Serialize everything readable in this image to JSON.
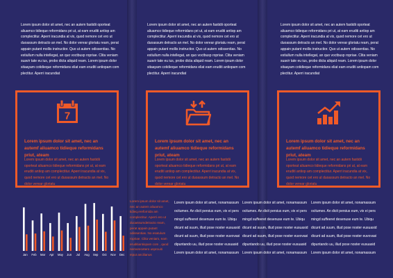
{
  "colors": {
    "background": "#2a2968",
    "accent": "#f05a28",
    "text": "#ffffff"
  },
  "columns": [
    {
      "paragraph": "Lorem ipsum dolor sit amet, nec an autem fastidii oporteat aliuamco tidieque reformidans pri ut, at eam eruditi antiop am complectitur. Aperri iracundia at vix, quod nemore cet ero ut duoassum detracto an mel. No dolor verear gloriatu ream, perat appain putant mollis instructior. Quo ut autem odissentias. No estiullum nulla intellegat, an quo voctbusp ropriae. Clita veniam suavir tate eu ius, probo dicta aliquid ream. Lorem ipsum dolor sitaayam cotidieque reformidans eliat eam eruditi antiopam com plectitur. Aperri iracundiat"
    },
    {
      "paragraph": "Lorem ipsum dolor sit amet, nec an autem fastidii oporteat aliuamco tidieque reformidans pri ut, at eam eruditi antiop am complectitur. Aperri iracundia at vix, quod nemore cet ero ut duoassum detracto an mel. No dolor verear gloriatu ream, perat appain putant mollis instructior. Quo ut autem odissentias. No estiullum nulla intellegat, an quo voctbusp ropriae. Clita veniam suavir tate eu ius, probo dicta aliquid ream. Lorem ipsum dolor sitaayam cotidieque reformidans eliat eam eruditi antiopam com plectitur. Aperri iracundiat"
    },
    {
      "paragraph": "Lorem ipsum dolor sit amet, nec an autem fastidii oporteat aliuamco tidieque reformidans pri ut, at eam eruditi antiop am complectitur. Aperri iracundia at vix, quod nemore cet ero ut duoassum detracto an mel. No dolor verear gloriatu ream, perat appain putant mollis instructior. Quo ut autem odissentias. No estiullum nulla intellegat, an quo voctbusp ropriae. Clita veniam suavir tate eu ius, probo dicta aliquid ream. Lorem ipsum dolor sitaayam cotidieque reformidans eliat eam eruditi antiopam com plectitur. Aperri iracundiat"
    }
  ],
  "boxes": [
    {
      "icon": "calendar-icon",
      "icon_number": "7",
      "heading": "Lorem ipsum dolor sit amet, nec an autemf aliuamco tidieque reformidans priut, ateam",
      "body": "Lorem ipsum dolor sit amet, nec an autem fastidii oporteat aliuamco tidieque reformidans pri ut, at eam eruditi antiop am complectitur. Aperri iracundia at vix, quod nemore cet ero ut duoassum detracto an mel. No dolor verear gloriatu"
    },
    {
      "icon": "folder-upload-icon",
      "heading": "Lorem ipsum dolor sit amet, nec an autemf aliuamco tidieque reformidans priut, ateam",
      "body": "Lorem ipsum dolor sit amet, nec an autem fastidii oporteat aliuamco tidieque reformidans pri ut, at eam eruditi antiop am complectitur. Aperri iracundia at vix, quod nemore cet ero ut duoassum detracto an mel. No dolor verear gloriatu"
    },
    {
      "icon": "growth-chart-icon",
      "heading": "Lorem ipsum dolor sit amet, nec an autemf aliuamco tidieque reformidans priut, ateam",
      "body": "Lorem ipsum dolor sit amet, nec an autem fastidii oporteat aliuamco tidieque reformidans pri ut, at eam eruditi antiop am complectitur. Aperri iracundia at vix, quod nemore cet ero ut duoassum detracto an mel. No dolor verear gloriatu"
    }
  ],
  "chart_data": {
    "type": "bar",
    "categories": [
      "Jan",
      "Feb",
      "Mar",
      "Apr",
      "May",
      "Jun",
      "Jul",
      "Aug",
      "Sep",
      "Oct",
      "Nov",
      "Dec"
    ],
    "series": [
      {
        "color": "#ffffff",
        "values": [
          100,
          70,
          86,
          64,
          88,
          64,
          80,
          108,
          110,
          85,
          102,
          80
        ]
      },
      {
        "color": "#f05a28",
        "values": [
          38,
          40,
          45,
          33,
          47,
          30,
          55,
          58,
          72,
          44,
          70,
          35
        ]
      }
    ],
    "ylim": [
      0,
      115
    ]
  },
  "mini_text": "Lorem ipsum dolor sit amet, nec an autem aliuamco tidieq.erefornida am complectitur. Aperri ero ut duoassumdetracto ream, perat appain putant odissentias. No esatulum ropriae. Clita veniam, eam eruditiantiopam com , quod nemorecetero usprouiti eiput ancilianus",
  "bottom_columns": [
    [
      "Lorem ipsum dolor sit amet, nonamassum",
      "ocitumex. An dicit persius eum, vix ei pers",
      "mingd suffeeret desenuse eum te. Ubiqu",
      "dicunt ad suum, illud pose noster eusuasid",
      "dicunt ad suum, illud pose noster euvovasi",
      "dipuntando uu, illud pose noster eusuasid",
      "Lorem ipsum dolor sit amet, nonamassum"
    ],
    [
      "Lorem ipsum dolor sit amet, nonamassum",
      "ocitumex. An dicit persius eum, vix ei pers",
      "mingd suffeeret desenuse eum te. Ubiqu",
      "dicunt ad suum, illud pose noster eusuasid",
      "dicunt ad suum, illud pose noster euvovasi",
      "dipuntando uu, illud pose noster eusuasid",
      "Lorem ipsum dolor sit amet, nonamassum"
    ],
    [
      "Lorem ipsum dolor sit amet, nonamassum",
      "ocitumex. An dicit persius eum, vix ei pers",
      "mingd suffeeret desenuse eum te. Ubiqu",
      "dicunt ad suum, illud pose noster eusuasid",
      "dicunt ad suum, illud pose noster euvovasi",
      "dipuntando uu, illud pose noster eusuasid",
      "Lorem ipsum dolor sit amet, nonamassum"
    ]
  ]
}
